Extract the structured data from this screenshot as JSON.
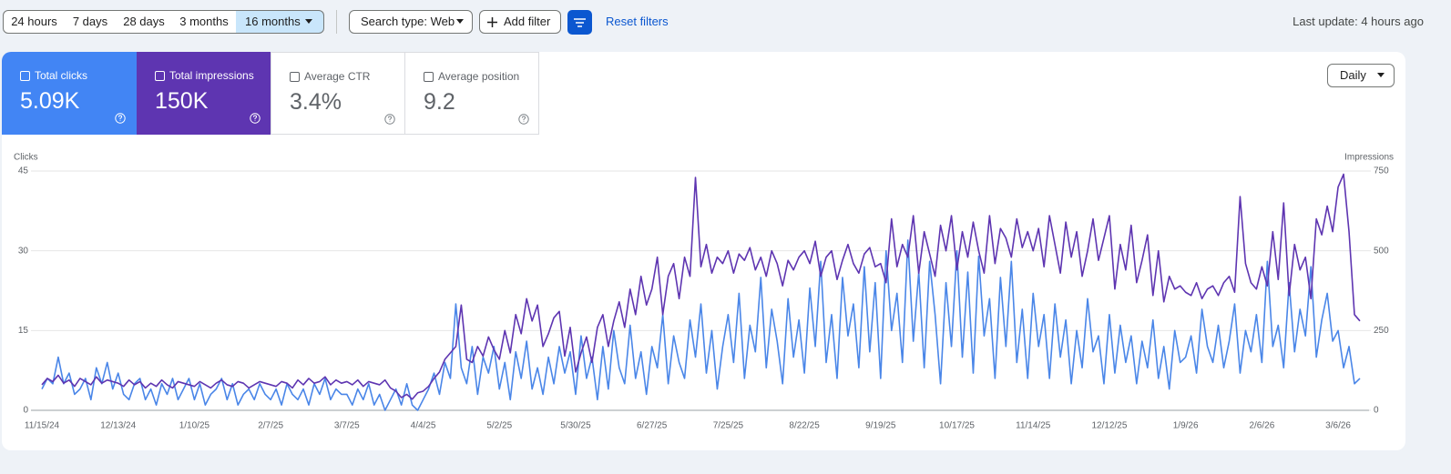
{
  "toolbar": {
    "ranges": [
      "24 hours",
      "7 days",
      "28 days",
      "3 months",
      "16 months"
    ],
    "search_type": "Search type: Web",
    "add_filter": "Add filter",
    "reset_filters": "Reset filters",
    "last_update": "Last update: 4 hours ago"
  },
  "metrics": [
    {
      "label": "Total clicks",
      "value": "5.09K"
    },
    {
      "label": "Total impressions",
      "value": "150K"
    },
    {
      "label": "Average CTR",
      "value": "3.4%"
    },
    {
      "label": "Average position",
      "value": "9.2"
    }
  ],
  "granularity": "Daily",
  "chart_data": {
    "type": "line",
    "y_label": "Clicks",
    "y2_label": "Impressions",
    "grid": true,
    "ylim": [
      0,
      45
    ],
    "yticks": [
      0,
      15,
      30,
      45
    ],
    "y2lim": [
      0,
      750
    ],
    "y2ticks": [
      0,
      250,
      500,
      750
    ],
    "categories": [
      "11/15/24",
      null,
      null,
      null,
      null,
      null,
      null,
      null,
      null,
      null,
      null,
      null,
      null,
      null,
      "12/13/24",
      null,
      null,
      null,
      null,
      null,
      null,
      null,
      null,
      null,
      null,
      null,
      null,
      null,
      "1/10/25",
      null,
      null,
      null,
      null,
      null,
      null,
      null,
      null,
      null,
      null,
      null,
      null,
      null,
      "2/7/25",
      null,
      null,
      null,
      null,
      null,
      null,
      null,
      null,
      null,
      null,
      null,
      null,
      null,
      "3/7/25",
      null,
      null,
      null,
      null,
      null,
      null,
      null,
      null,
      null,
      null,
      null,
      null,
      null,
      "4/4/25",
      null,
      null,
      null,
      null,
      null,
      null,
      null,
      null,
      null,
      null,
      null,
      null,
      null,
      "5/2/25",
      null,
      null,
      null,
      null,
      null,
      null,
      null,
      null,
      null,
      null,
      null,
      null,
      null,
      "5/30/25",
      null,
      null,
      null,
      null,
      null,
      null,
      null,
      null,
      null,
      null,
      null,
      null,
      null,
      "6/27/25",
      null,
      null,
      null,
      null,
      null,
      null,
      null,
      null,
      null,
      null,
      null,
      null,
      null,
      "7/25/25",
      null,
      null,
      null,
      null,
      null,
      null,
      null,
      null,
      null,
      null,
      null,
      null,
      null,
      "8/22/25",
      null,
      null,
      null,
      null,
      null,
      null,
      null,
      null,
      null,
      null,
      null,
      null,
      null,
      "9/19/25",
      null,
      null,
      null,
      null,
      null,
      null,
      null,
      null,
      null,
      null,
      null,
      null,
      null,
      "10/17/25",
      null,
      null,
      null,
      null,
      null,
      null,
      null,
      null,
      null,
      null,
      null,
      null,
      null,
      "11/14/25",
      null,
      null,
      null,
      null,
      null,
      null,
      null,
      null,
      null,
      null,
      null,
      null,
      null,
      "12/12/25",
      null,
      null,
      null,
      null,
      null,
      null,
      null,
      null,
      null,
      null,
      null,
      null,
      null,
      "1/9/26",
      null,
      null,
      null,
      null,
      null,
      null,
      null,
      null,
      null,
      null,
      null,
      null,
      null,
      "2/6/26",
      null,
      null,
      null,
      null,
      null,
      null,
      null,
      null,
      null,
      null,
      null,
      null,
      null,
      "3/6/26",
      null,
      null,
      null,
      null
    ],
    "series": [
      {
        "name": "Clicks",
        "color": "#4a86e8",
        "axis": "y",
        "values": [
          4,
          6,
          5,
          10,
          5,
          7,
          3,
          4,
          6,
          2,
          8,
          5,
          9,
          4,
          7,
          3,
          2,
          5,
          6,
          2,
          4,
          1,
          5,
          3,
          6,
          2,
          4,
          6,
          2,
          5,
          1,
          3,
          4,
          6,
          2,
          5,
          1,
          3,
          4,
          2,
          5,
          3,
          2,
          4,
          1,
          5,
          3,
          2,
          4,
          1,
          5,
          3,
          6,
          2,
          4,
          3,
          3,
          1,
          4,
          2,
          5,
          1,
          3,
          0,
          2,
          4,
          1,
          5,
          1,
          0,
          2,
          4,
          7,
          3,
          9,
          6,
          20,
          8,
          5,
          12,
          3,
          10,
          7,
          12,
          4,
          9,
          2,
          11,
          6,
          13,
          4,
          8,
          3,
          10,
          5,
          12,
          7,
          11,
          3,
          14,
          6,
          10,
          2,
          12,
          4,
          15,
          8,
          5,
          16,
          6,
          11,
          3,
          12,
          8,
          18,
          5,
          14,
          9,
          6,
          17,
          10,
          20,
          7,
          15,
          4,
          12,
          18,
          9,
          22,
          6,
          16,
          11,
          25,
          8,
          19,
          13,
          5,
          21,
          10,
          17,
          7,
          23,
          12,
          28,
          9,
          18,
          6,
          25,
          14,
          20,
          8,
          27,
          11,
          24,
          6,
          30,
          15,
          22,
          9,
          32,
          13,
          26,
          8,
          28,
          18,
          5,
          24,
          12,
          30,
          10,
          26,
          7,
          29,
          14,
          21,
          6,
          25,
          12,
          28,
          9,
          19,
          6,
          22,
          12,
          18,
          6,
          20,
          10,
          17,
          5,
          15,
          8,
          21,
          11,
          14,
          5,
          18,
          7,
          16,
          9,
          14,
          5,
          13,
          8,
          17,
          6,
          12,
          4,
          15,
          9,
          10,
          14,
          7,
          19,
          12,
          9,
          16,
          8,
          13,
          20,
          7,
          15,
          11,
          18,
          9,
          28,
          12,
          16,
          8,
          24,
          11,
          19,
          14,
          27,
          10,
          17,
          22,
          13,
          15,
          8,
          12,
          5,
          6
        ]
      },
      {
        "name": "Impressions",
        "color": "#5e35b1",
        "axis": "y2",
        "values": [
          80,
          100,
          90,
          110,
          85,
          95,
          75,
          100,
          90,
          80,
          105,
          85,
          95,
          90,
          85,
          75,
          95,
          80,
          90,
          70,
          85,
          75,
          95,
          80,
          70,
          90,
          85,
          80,
          75,
          90,
          80,
          70,
          85,
          95,
          80,
          75,
          90,
          85,
          70,
          80,
          90,
          85,
          80,
          75,
          90,
          85,
          70,
          95,
          80,
          100,
          85,
          90,
          105,
          80,
          95,
          85,
          90,
          80,
          95,
          75,
          90,
          85,
          80,
          95,
          70,
          60,
          40,
          50,
          35,
          55,
          60,
          75,
          100,
          120,
          160,
          180,
          200,
          330,
          160,
          150,
          200,
          170,
          230,
          190,
          160,
          250,
          180,
          300,
          240,
          350,
          280,
          330,
          200,
          240,
          290,
          310,
          170,
          260,
          120,
          180,
          230,
          150,
          260,
          300,
          200,
          280,
          340,
          260,
          380,
          300,
          420,
          330,
          380,
          480,
          300,
          420,
          460,
          350,
          480,
          420,
          730,
          450,
          520,
          430,
          480,
          460,
          500,
          430,
          490,
          470,
          510,
          440,
          480,
          420,
          500,
          460,
          390,
          470,
          440,
          480,
          500,
          460,
          530,
          420,
          480,
          500,
          410,
          470,
          520,
          460,
          430,
          490,
          510,
          450,
          460,
          400,
          600,
          450,
          520,
          480,
          610,
          430,
          560,
          490,
          420,
          580,
          500,
          610,
          440,
          560,
          480,
          590,
          500,
          430,
          610,
          460,
          570,
          540,
          480,
          600,
          510,
          560,
          500,
          570,
          450,
          610,
          520,
          430,
          590,
          480,
          560,
          420,
          500,
          600,
          470,
          540,
          610,
          380,
          520,
          440,
          580,
          400,
          470,
          550,
          360,
          500,
          340,
          420,
          380,
          390,
          370,
          360,
          400,
          350,
          380,
          390,
          360,
          400,
          420,
          370,
          670,
          460,
          400,
          380,
          450,
          390,
          560,
          410,
          650,
          360,
          520,
          440,
          480,
          350,
          600,
          550,
          640,
          560,
          700,
          740,
          560,
          300,
          280
        ]
      }
    ]
  }
}
